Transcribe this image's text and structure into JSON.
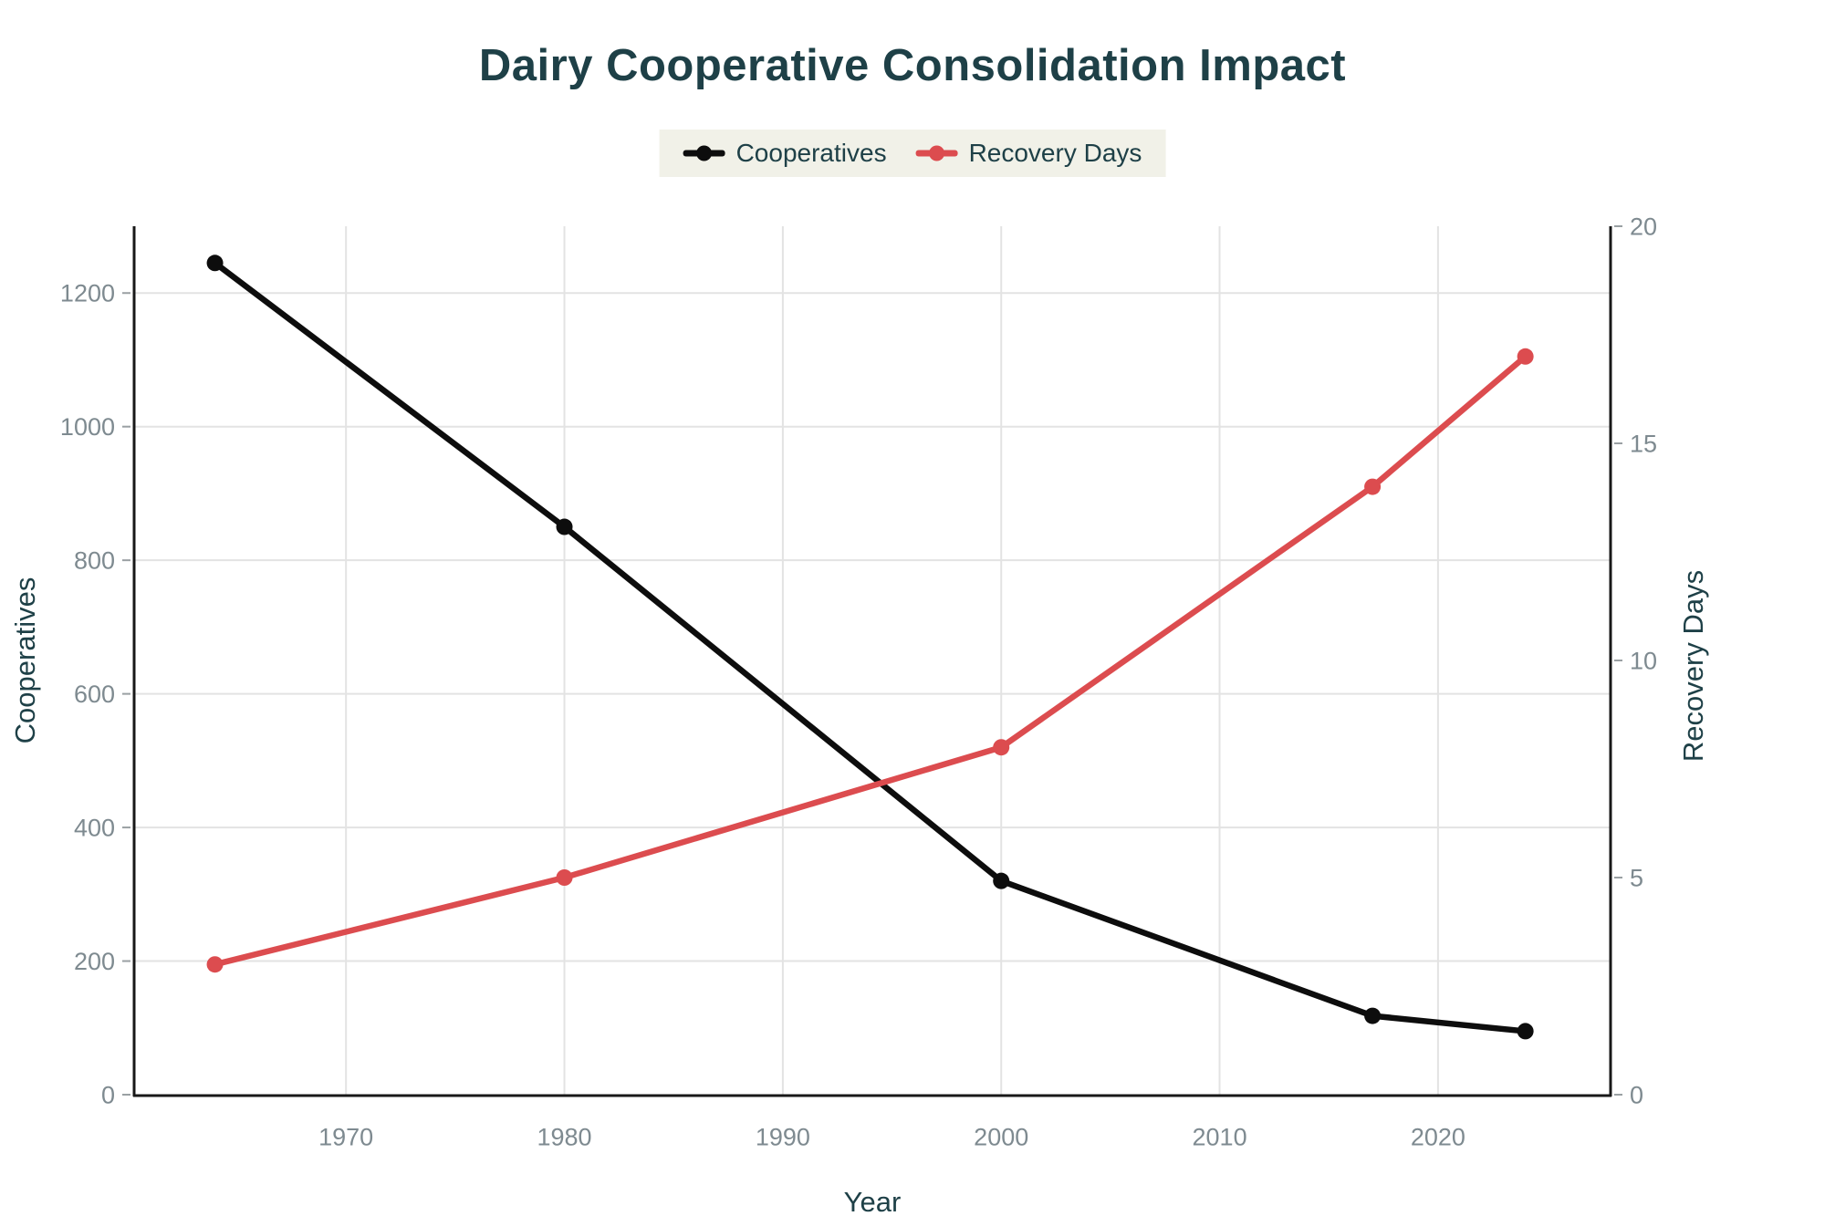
{
  "chart_data": {
    "type": "line",
    "title": "Dairy Cooperative Consolidation Impact",
    "xlabel": "Year",
    "ylabel_left": "Cooperatives",
    "ylabel_right": "Recovery Days",
    "x": [
      1964,
      1980,
      2000,
      2017,
      2024
    ],
    "series": [
      {
        "name": "Cooperatives",
        "axis": "left",
        "color": "#0d0d0d",
        "values": [
          1245,
          850,
          320,
          118,
          95
        ]
      },
      {
        "name": "Recovery Days",
        "axis": "right",
        "color": "#dc4c4f",
        "values": [
          3,
          5,
          8,
          14,
          17
        ]
      }
    ],
    "x_domain": [
      1960.3,
      2027.9
    ],
    "x_ticks": [
      "1970",
      "1980",
      "1990",
      "2000",
      "2010",
      "2020"
    ],
    "x_tick_values": [
      1970,
      1980,
      1990,
      2000,
      2010,
      2020
    ],
    "ylim_left": [
      0,
      1300
    ],
    "left_ticks": [
      "0",
      "200",
      "400",
      "600",
      "800",
      "1000",
      "1200"
    ],
    "left_tick_values": [
      0,
      200,
      400,
      600,
      800,
      1000,
      1200
    ],
    "ylim_right": [
      0,
      20
    ],
    "right_ticks": [
      "0",
      "5",
      "10",
      "15",
      "20"
    ],
    "right_tick_values": [
      0,
      5,
      10,
      15,
      20
    ],
    "grid": true,
    "legend_position": "top-center"
  },
  "style": {
    "title_color": "#1e4047",
    "axis_title_color": "#1e4047",
    "legend_text_color": "#1e4047",
    "legend_background": "#f1f1e8",
    "tick_label_color": "#7e8a90",
    "grid_color": "#e3e3e3",
    "axis_line_color": "#181818",
    "tick_mark_color": "#9aa0a3",
    "background": "#ffffff"
  }
}
